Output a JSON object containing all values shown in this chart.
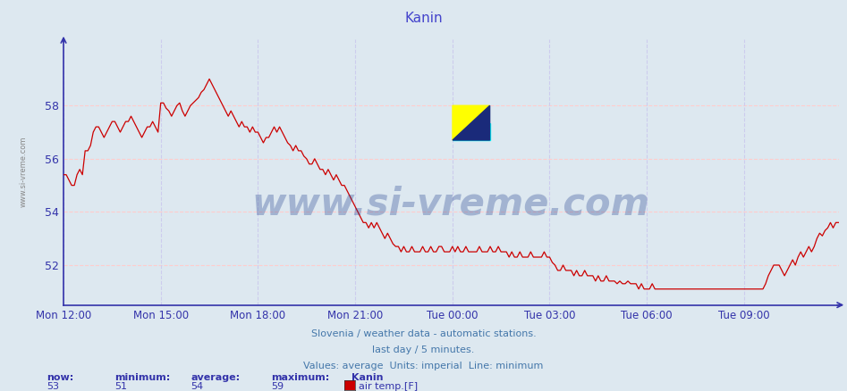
{
  "title": "Kanin",
  "title_color": "#4444cc",
  "bg_color": "#dde8f0",
  "plot_bg_color": "#dde8f0",
  "line_color": "#cc0000",
  "axis_color": "#3333aa",
  "grid_h_color": "#ffcccc",
  "grid_v_color": "#ccccee",
  "watermark": "www.si-vreme.com",
  "watermark_color": "#1a3a8a",
  "sidebar_label": "www.si-vreme.com",
  "footer_line1": "Slovenia / weather data - automatic stations.",
  "footer_line2": "last day / 5 minutes.",
  "footer_line3": "Values: average  Units: imperial  Line: minimum",
  "stats_labels_row1": [
    "now:",
    "minimum:",
    "average:",
    "maximum:",
    "Kanin"
  ],
  "stats_values_row2": [
    "53",
    "51",
    "54",
    "59"
  ],
  "legend_label": "air temp.[F]",
  "legend_color": "#cc0000",
  "x_tick_labels": [
    "Mon 12:00",
    "Mon 15:00",
    "Mon 18:00",
    "Mon 21:00",
    "Tue 00:00",
    "Tue 03:00",
    "Tue 06:00",
    "Tue 09:00"
  ],
  "x_tick_positions": [
    0,
    36,
    72,
    108,
    144,
    180,
    216,
    252
  ],
  "y_ticks": [
    52,
    54,
    56,
    58
  ],
  "ylim": [
    50.5,
    60.5
  ],
  "temp_data": [
    55.4,
    55.4,
    55.2,
    55.0,
    55.0,
    55.4,
    55.6,
    55.4,
    56.3,
    56.3,
    56.5,
    57.0,
    57.2,
    57.2,
    57.0,
    56.8,
    57.0,
    57.2,
    57.4,
    57.4,
    57.2,
    57.0,
    57.2,
    57.4,
    57.4,
    57.6,
    57.4,
    57.2,
    57.0,
    56.8,
    57.0,
    57.2,
    57.2,
    57.4,
    57.2,
    57.0,
    58.1,
    58.1,
    57.9,
    57.8,
    57.6,
    57.8,
    58.0,
    58.1,
    57.8,
    57.6,
    57.8,
    58.0,
    58.1,
    58.2,
    58.3,
    58.5,
    58.6,
    58.8,
    59.0,
    58.8,
    58.6,
    58.4,
    58.2,
    58.0,
    57.8,
    57.6,
    57.8,
    57.6,
    57.4,
    57.2,
    57.4,
    57.2,
    57.2,
    57.0,
    57.2,
    57.0,
    57.0,
    56.8,
    56.6,
    56.8,
    56.8,
    57.0,
    57.2,
    57.0,
    57.2,
    57.0,
    56.8,
    56.6,
    56.5,
    56.3,
    56.5,
    56.3,
    56.3,
    56.1,
    56.0,
    55.8,
    55.8,
    56.0,
    55.8,
    55.6,
    55.6,
    55.4,
    55.6,
    55.4,
    55.2,
    55.4,
    55.2,
    55.0,
    55.0,
    54.8,
    54.6,
    54.4,
    54.2,
    54.0,
    53.8,
    53.6,
    53.6,
    53.4,
    53.6,
    53.4,
    53.6,
    53.4,
    53.2,
    53.0,
    53.2,
    53.0,
    52.8,
    52.7,
    52.7,
    52.5,
    52.7,
    52.5,
    52.5,
    52.7,
    52.5,
    52.5,
    52.5,
    52.7,
    52.5,
    52.5,
    52.7,
    52.5,
    52.5,
    52.7,
    52.7,
    52.5,
    52.5,
    52.5,
    52.7,
    52.5,
    52.7,
    52.5,
    52.5,
    52.7,
    52.5,
    52.5,
    52.5,
    52.5,
    52.7,
    52.5,
    52.5,
    52.5,
    52.7,
    52.5,
    52.5,
    52.7,
    52.5,
    52.5,
    52.5,
    52.3,
    52.5,
    52.3,
    52.3,
    52.5,
    52.3,
    52.3,
    52.3,
    52.5,
    52.3,
    52.3,
    52.3,
    52.3,
    52.5,
    52.3,
    52.3,
    52.1,
    52.0,
    51.8,
    51.8,
    52.0,
    51.8,
    51.8,
    51.8,
    51.6,
    51.8,
    51.6,
    51.6,
    51.8,
    51.6,
    51.6,
    51.6,
    51.4,
    51.6,
    51.4,
    51.4,
    51.6,
    51.4,
    51.4,
    51.4,
    51.3,
    51.4,
    51.3,
    51.3,
    51.4,
    51.3,
    51.3,
    51.3,
    51.1,
    51.3,
    51.1,
    51.1,
    51.1,
    51.3,
    51.1,
    51.1,
    51.1,
    51.1,
    51.1,
    51.1,
    51.1,
    51.1,
    51.1,
    51.1,
    51.1,
    51.1,
    51.1,
    51.1,
    51.1,
    51.1,
    51.1,
    51.1,
    51.1,
    51.1,
    51.1,
    51.1,
    51.1,
    51.1,
    51.1,
    51.1,
    51.1,
    51.1,
    51.1,
    51.1,
    51.1,
    51.1,
    51.1,
    51.1,
    51.1,
    51.1,
    51.1,
    51.1,
    51.1,
    51.1,
    51.1,
    51.3,
    51.6,
    51.8,
    52.0,
    52.0,
    52.0,
    51.8,
    51.6,
    51.8,
    52.0,
    52.2,
    52.0,
    52.3,
    52.5,
    52.3,
    52.5,
    52.7,
    52.5,
    52.7,
    53.0,
    53.2,
    53.1,
    53.3,
    53.4,
    53.6,
    53.4,
    53.6,
    53.6
  ]
}
